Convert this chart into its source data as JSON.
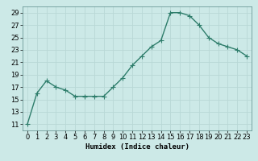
{
  "x": [
    0,
    1,
    2,
    3,
    4,
    5,
    6,
    7,
    8,
    9,
    10,
    11,
    12,
    13,
    14,
    15,
    16,
    17,
    18,
    19,
    20,
    21,
    22,
    23
  ],
  "y": [
    11.0,
    16.0,
    18.0,
    17.0,
    16.5,
    15.5,
    15.5,
    15.5,
    15.5,
    17.0,
    18.5,
    20.5,
    22.0,
    23.5,
    24.5,
    29.0,
    29.0,
    28.5,
    27.0,
    25.0,
    24.0,
    23.5,
    23.0,
    22.0
  ],
  "line_color": "#2e7d6b",
  "marker_color": "#2e7d6b",
  "bg_color": "#cce9e7",
  "grid_color": "#b8d8d6",
  "xlabel": "Humidex (Indice chaleur)",
  "xlim": [
    -0.5,
    23.5
  ],
  "ylim": [
    10,
    30
  ],
  "yticks": [
    11,
    13,
    15,
    17,
    19,
    21,
    23,
    25,
    27,
    29
  ],
  "xticks": [
    0,
    1,
    2,
    3,
    4,
    5,
    6,
    7,
    8,
    9,
    10,
    11,
    12,
    13,
    14,
    15,
    16,
    17,
    18,
    19,
    20,
    21,
    22,
    23
  ],
  "font_size_label": 6.5,
  "font_size_tick": 6.0,
  "linewidth": 1.0,
  "markersize": 4,
  "markeredgewidth": 0.8
}
